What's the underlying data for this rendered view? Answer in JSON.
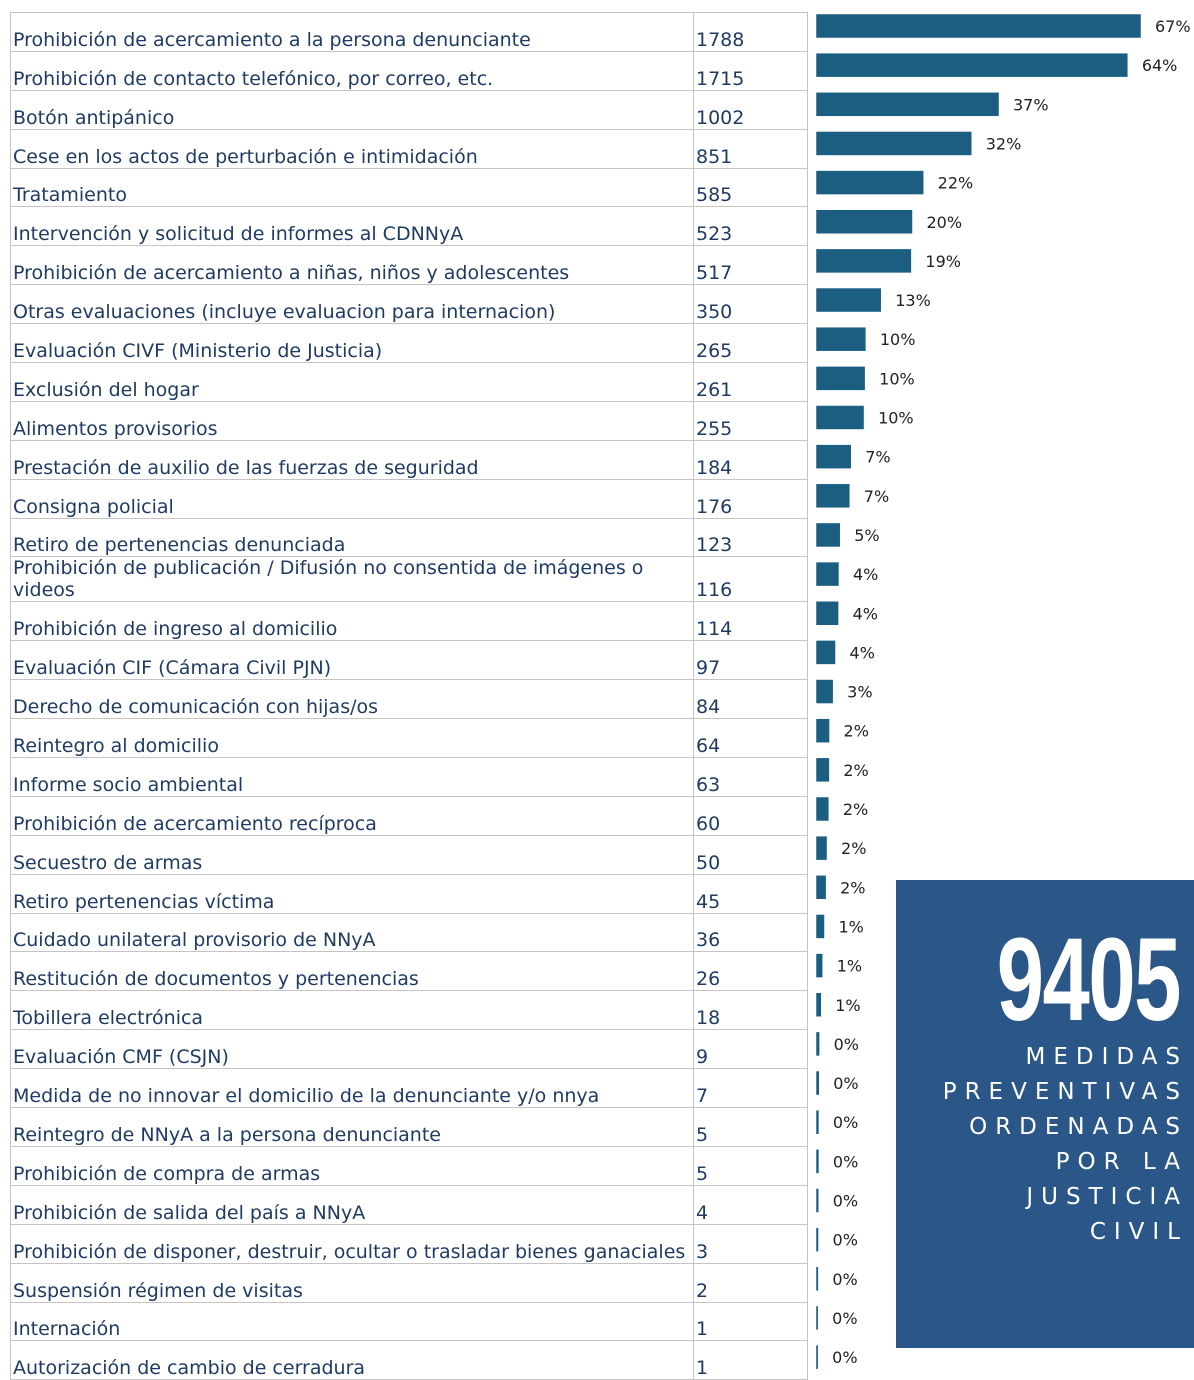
{
  "table": {
    "rows": [
      {
        "label": "Prohibición de acercamiento a la persona denunciante",
        "count": 1788,
        "percent": "67%"
      },
      {
        "label": "Prohibición de contacto telefónico, por correo, etc.",
        "count": 1715,
        "percent": "64%"
      },
      {
        "label": "Botón antipánico",
        "count": 1002,
        "percent": "37%"
      },
      {
        "label": "Cese en los actos de perturbación e intimidación",
        "count": 851,
        "percent": "32%"
      },
      {
        "label": "Tratamiento",
        "count": 585,
        "percent": "22%"
      },
      {
        "label": "Intervención y solicitud de informes al CDNNyA",
        "count": 523,
        "percent": "20%"
      },
      {
        "label": "Prohibición de acercamiento a niñas, niños y adolescentes",
        "count": 517,
        "percent": "19%"
      },
      {
        "label": "Otras evaluaciones (incluye evaluacion para internacion)",
        "count": 350,
        "percent": "13%"
      },
      {
        "label": "Evaluación CIVF (Ministerio de Justicia)",
        "count": 265,
        "percent": "10%"
      },
      {
        "label": "Exclusión del hogar",
        "count": 261,
        "percent": "10%"
      },
      {
        "label": "Alimentos provisorios",
        "count": 255,
        "percent": "10%"
      },
      {
        "label": "Prestación de auxilio de las fuerzas de seguridad",
        "count": 184,
        "percent": "7%"
      },
      {
        "label": "Consigna policial",
        "count": 176,
        "percent": "7%"
      },
      {
        "label": "Retiro de pertenencias denunciada",
        "count": 123,
        "percent": "5%"
      },
      {
        "label": "Prohibición de publicación / Difusión no consentida de imágenes o videos",
        "count": 116,
        "percent": "4%"
      },
      {
        "label": "Prohibición de ingreso al domicilio",
        "count": 114,
        "percent": "4%"
      },
      {
        "label": "Evaluación CIF (Cámara Civil PJN)",
        "count": 97,
        "percent": "4%"
      },
      {
        "label": "Derecho de comunicación con hijas/os",
        "count": 84,
        "percent": "3%"
      },
      {
        "label": "Reintegro al domicilio",
        "count": 64,
        "percent": "2%"
      },
      {
        "label": "Informe socio ambiental",
        "count": 63,
        "percent": "2%"
      },
      {
        "label": "Prohibición de acercamiento recíproca",
        "count": 60,
        "percent": "2%"
      },
      {
        "label": "Secuestro de armas",
        "count": 50,
        "percent": "2%"
      },
      {
        "label": "Retiro pertenencias víctima",
        "count": 45,
        "percent": "2%"
      },
      {
        "label": "Cuidado unilateral provisorio de NNyA",
        "count": 36,
        "percent": "1%"
      },
      {
        "label": "Restitución de documentos y pertenencias",
        "count": 26,
        "percent": "1%"
      },
      {
        "label": "Tobillera electrónica",
        "count": 18,
        "percent": "1%"
      },
      {
        "label": "Evaluación CMF (CSJN)",
        "count": 9,
        "percent": "0%"
      },
      {
        "label": "Medida de no innovar el domicilio de la denunciante y/o nnya",
        "count": 7,
        "percent": "0%"
      },
      {
        "label": "Reintegro de NNyA a la persona denunciante",
        "count": 5,
        "percent": "0%"
      },
      {
        "label": "Prohibición de compra de armas",
        "count": 5,
        "percent": "0%"
      },
      {
        "label": "Prohibición de salida del país a NNyA",
        "count": 4,
        "percent": "0%"
      },
      {
        "label": "Prohibición de disponer, destruir, ocultar o trasladar bienes ganaciales",
        "count": 3,
        "percent": "0%"
      },
      {
        "label": "Suspensión régimen de visitas",
        "count": 2,
        "percent": "0%"
      },
      {
        "label": "Internación",
        "count": 1,
        "percent": "0%"
      },
      {
        "label": "Autorización de cambio de cerradura",
        "count": 1,
        "percent": "0%"
      }
    ]
  },
  "callout": {
    "total": "9405",
    "lines": [
      "MEDIDAS",
      "PREVENTIVAS",
      "ORDENADAS",
      "POR LA",
      "JUSTICIA",
      "CIVIL"
    ]
  },
  "color": "#1b5e82"
}
